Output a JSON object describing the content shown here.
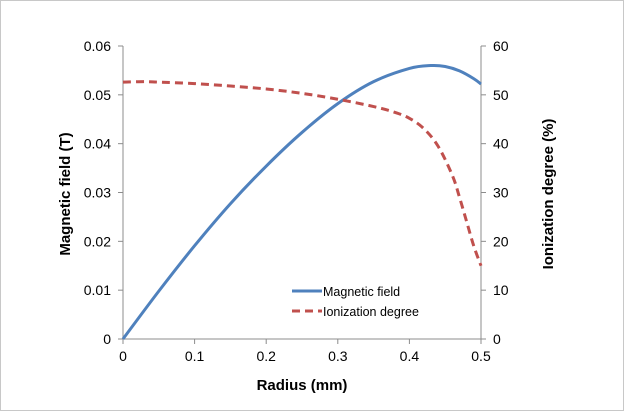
{
  "chart_data": {
    "type": "line",
    "title": "",
    "xlabel": "Radius (mm)",
    "ylabel": "Magnetic field (T)",
    "y2label": "Ionization degree (%)",
    "xlim": [
      0,
      0.5
    ],
    "ylim": [
      0,
      0.06
    ],
    "y2lim": [
      0,
      60
    ],
    "x_ticks": [
      "0",
      "0.1",
      "0.2",
      "0.3",
      "0.4",
      "0.5"
    ],
    "y_ticks": [
      "0",
      "0.01",
      "0.02",
      "0.03",
      "0.04",
      "0.05",
      "0.06"
    ],
    "y2_ticks": [
      "0",
      "10",
      "20",
      "30",
      "40",
      "50",
      "60"
    ],
    "grid": false,
    "legend_position": "bottom-right",
    "colors": {
      "magnetic": "#4f81bd",
      "ionization": "#c0504d",
      "frame": "#c8c8c8",
      "axis": "#8c8c8c"
    },
    "series": [
      {
        "name": "Magnetic field",
        "axis": "left",
        "style": "solid",
        "x": [
          0,
          0.05,
          0.1,
          0.15,
          0.2,
          0.25,
          0.3,
          0.35,
          0.4,
          0.43,
          0.45,
          0.47,
          0.49,
          0.5
        ],
        "y": [
          0,
          0.0098,
          0.0191,
          0.0277,
          0.0354,
          0.0423,
          0.0482,
          0.0527,
          0.0554,
          0.056,
          0.0558,
          0.0549,
          0.0533,
          0.0522
        ]
      },
      {
        "name": "Ionization degree",
        "axis": "right",
        "style": "dashed",
        "x": [
          0,
          0.03,
          0.05,
          0.1,
          0.15,
          0.2,
          0.25,
          0.3,
          0.35,
          0.38,
          0.4,
          0.42,
          0.44,
          0.46,
          0.47,
          0.48,
          0.49,
          0.5
        ],
        "y": [
          52.6,
          52.7,
          52.6,
          52.3,
          51.8,
          51.2,
          50.3,
          49.1,
          47.6,
          46.4,
          45.2,
          43.1,
          39.5,
          33.5,
          29,
          24,
          19,
          15
        ]
      }
    ]
  }
}
